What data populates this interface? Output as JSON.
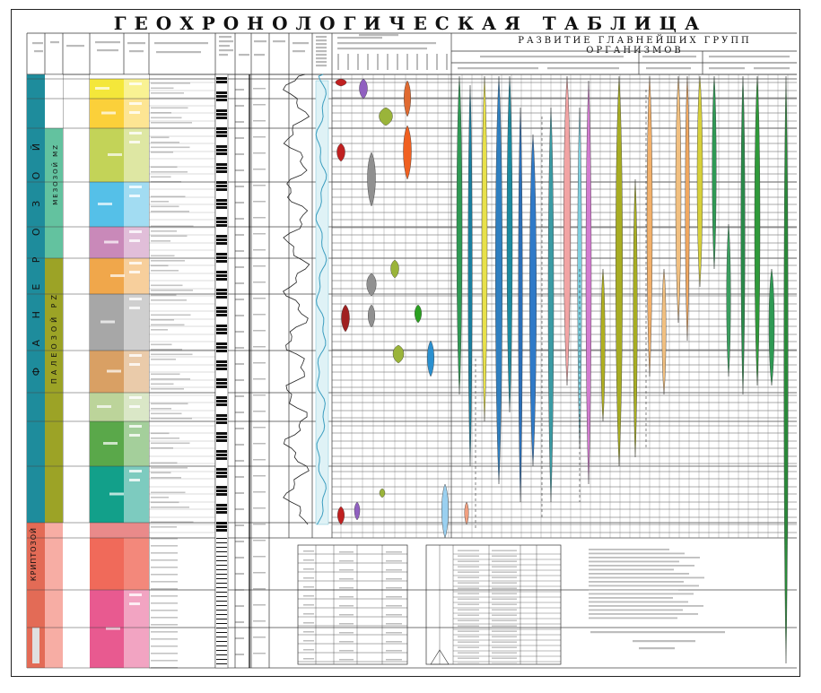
{
  "title": "ГЕОХРОНОЛОГИЧЕСКАЯ ТАБЛИЦА",
  "subtitle": "РАЗВИТИЕ ГЛАВНЕЙШИХ ГРУПП ОРГАНИЗМОВ",
  "eon_labels": {
    "phanerozoic": "Ф А Н Е Р О З О Й",
    "cryptozoic": "КРИПТОЗОЙ"
  },
  "era_labels": {
    "mesozoic": "МЕЗОЗОЙ MZ",
    "paleozoic": "ПАЛЕОЗОЙ PZ"
  },
  "colors": {
    "phanerozoic_eon": "#1e8c9c",
    "cryptozoic_eon": "#e36b56",
    "mesozoic_era": "#63c29f",
    "paleozoic_era": "#9ca326",
    "cenozoic_period": "#f4e73a",
    "neogene": "#fbd03a",
    "paleogene": "#f6a33f",
    "cretaceous": "#c3d358",
    "jurassic": "#55c0e8",
    "triassic": "#c989b9",
    "permian": "#f0a74b",
    "carboniferous": "#a7a7a7",
    "devonian": "#d9a064",
    "silurian": "#bcd49a",
    "ordovician": "#5aa84a",
    "cambrian": "#12a08a",
    "proterozoic": "#f06a5a",
    "archean": "#e85a90"
  }
}
